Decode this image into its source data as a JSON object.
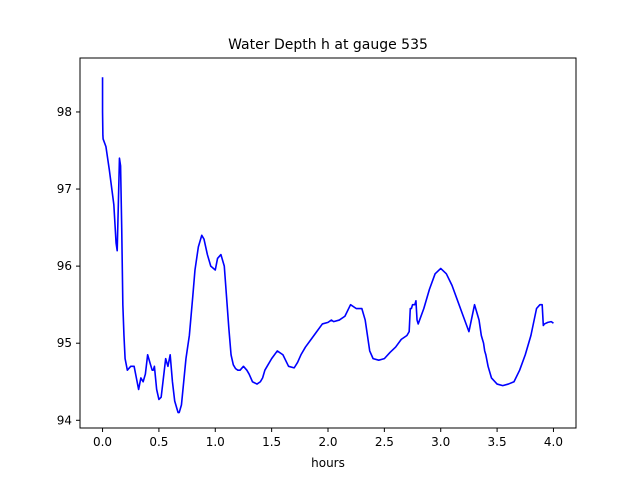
{
  "chart_data": {
    "type": "line",
    "title": "Water Depth h at gauge 535",
    "xlabel": "hours",
    "ylabel": "",
    "xlim": [
      -0.2,
      4.2
    ],
    "ylim": [
      93.9,
      98.7
    ],
    "xticks": [
      0.0,
      0.5,
      1.0,
      1.5,
      2.0,
      2.5,
      3.0,
      3.5,
      4.0
    ],
    "xtick_labels": [
      "0.0",
      "0.5",
      "1.0",
      "1.5",
      "2.0",
      "2.5",
      "3.0",
      "3.5",
      "4.0"
    ],
    "yticks": [
      94,
      95,
      96,
      97,
      98
    ],
    "ytick_labels": [
      "94",
      "95",
      "96",
      "97",
      "98"
    ],
    "grid": false,
    "series": [
      {
        "name": "",
        "color": "#0000ff",
        "x": [
          0.0,
          0.0,
          0.003,
          0.005,
          0.03,
          0.06,
          0.1,
          0.12,
          0.13,
          0.14,
          0.15,
          0.16,
          0.17,
          0.18,
          0.19,
          0.2,
          0.22,
          0.25,
          0.28,
          0.3,
          0.32,
          0.34,
          0.36,
          0.38,
          0.4,
          0.42,
          0.44,
          0.45,
          0.46,
          0.48,
          0.5,
          0.52,
          0.54,
          0.56,
          0.58,
          0.6,
          0.62,
          0.64,
          0.66,
          0.67,
          0.68,
          0.7,
          0.72,
          0.74,
          0.75,
          0.77,
          0.8,
          0.82,
          0.85,
          0.88,
          0.9,
          0.93,
          0.96,
          1.0,
          1.02,
          1.05,
          1.08,
          1.1,
          1.12,
          1.14,
          1.16,
          1.18,
          1.2,
          1.22,
          1.25,
          1.28,
          1.3,
          1.33,
          1.37,
          1.4,
          1.42,
          1.44,
          1.46,
          1.5,
          1.55,
          1.6,
          1.65,
          1.7,
          1.73,
          1.76,
          1.8,
          1.85,
          1.9,
          1.95,
          2.0,
          2.03,
          2.05,
          2.1,
          2.15,
          2.2,
          2.25,
          2.3,
          2.33,
          2.35,
          2.36,
          2.37,
          2.4,
          2.45,
          2.5,
          2.55,
          2.6,
          2.65,
          2.7,
          2.72,
          2.73,
          2.74,
          2.75,
          2.77,
          2.78,
          2.79,
          2.8,
          2.85,
          2.9,
          2.95,
          3.0,
          3.05,
          3.1,
          3.15,
          3.2,
          3.25,
          3.3,
          3.32,
          3.33,
          3.34,
          3.35,
          3.36,
          3.37,
          3.38,
          3.39,
          3.4,
          3.42,
          3.45,
          3.5,
          3.55,
          3.6,
          3.65,
          3.7,
          3.75,
          3.8,
          3.85,
          3.88,
          3.9,
          3.91,
          3.92,
          3.95,
          3.98,
          4.0
        ],
        "y": [
          98.45,
          98.0,
          97.7,
          97.65,
          97.55,
          97.25,
          96.8,
          96.3,
          96.2,
          96.8,
          97.4,
          97.3,
          96.5,
          95.5,
          95.1,
          94.8,
          94.65,
          94.7,
          94.7,
          94.55,
          94.4,
          94.55,
          94.5,
          94.6,
          94.85,
          94.75,
          94.65,
          94.65,
          94.7,
          94.4,
          94.27,
          94.3,
          94.55,
          94.8,
          94.7,
          94.85,
          94.5,
          94.25,
          94.15,
          94.1,
          94.1,
          94.2,
          94.5,
          94.8,
          94.9,
          95.1,
          95.6,
          95.95,
          96.25,
          96.4,
          96.35,
          96.15,
          96.0,
          95.95,
          96.1,
          96.15,
          96.0,
          95.6,
          95.2,
          94.85,
          94.72,
          94.67,
          94.65,
          94.65,
          94.7,
          94.65,
          94.6,
          94.5,
          94.47,
          94.5,
          94.55,
          94.65,
          94.7,
          94.8,
          94.9,
          94.85,
          94.7,
          94.68,
          94.75,
          94.85,
          94.95,
          95.05,
          95.15,
          95.25,
          95.27,
          95.3,
          95.28,
          95.3,
          95.35,
          95.5,
          95.45,
          95.45,
          95.3,
          95.1,
          95.0,
          94.9,
          94.8,
          94.78,
          94.8,
          94.88,
          94.95,
          95.05,
          95.1,
          95.15,
          95.45,
          95.45,
          95.5,
          95.5,
          95.55,
          95.3,
          95.25,
          95.45,
          95.7,
          95.9,
          95.97,
          95.9,
          95.75,
          95.55,
          95.35,
          95.15,
          95.5,
          95.4,
          95.35,
          95.3,
          95.2,
          95.1,
          95.05,
          95.0,
          94.9,
          94.85,
          94.7,
          94.55,
          94.47,
          94.45,
          94.47,
          94.5,
          94.65,
          94.85,
          95.1,
          95.45,
          95.5,
          95.5,
          95.23,
          95.25,
          95.27,
          95.28,
          95.26
        ]
      }
    ]
  }
}
